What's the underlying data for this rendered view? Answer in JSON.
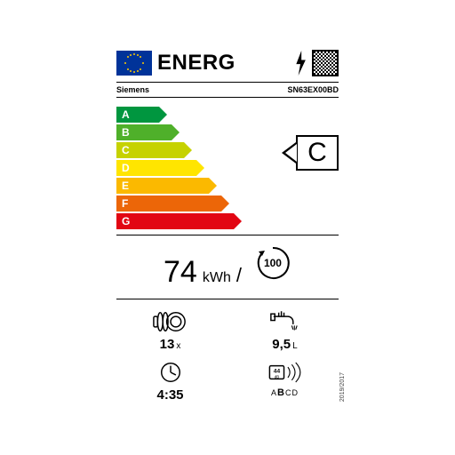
{
  "header": {
    "title": "ENERG",
    "bolt_color": "#000000"
  },
  "supplier": "Siemens",
  "model": "SN63EX00BD",
  "classes": [
    {
      "letter": "A",
      "color": "#00963f",
      "width": 48
    },
    {
      "letter": "B",
      "color": "#4fb02a",
      "width": 62
    },
    {
      "letter": "C",
      "color": "#c6d200",
      "width": 76
    },
    {
      "letter": "D",
      "color": "#ffe500",
      "width": 90
    },
    {
      "letter": "E",
      "color": "#fbb900",
      "width": 104
    },
    {
      "letter": "F",
      "color": "#ec6608",
      "width": 118
    },
    {
      "letter": "G",
      "color": "#e20613",
      "width": 132
    }
  ],
  "rating": "C",
  "consumption": {
    "value": "74",
    "unit": "kWh",
    "cycles": "100"
  },
  "capacity": {
    "value": "13",
    "unit": "x"
  },
  "water": {
    "value": "9,5",
    "unit": "L"
  },
  "duration": {
    "value": "4:35"
  },
  "noise": {
    "db": "44",
    "unit": "dB",
    "classes": "ABCD",
    "active": "B"
  },
  "regulation": "2019/2017"
}
